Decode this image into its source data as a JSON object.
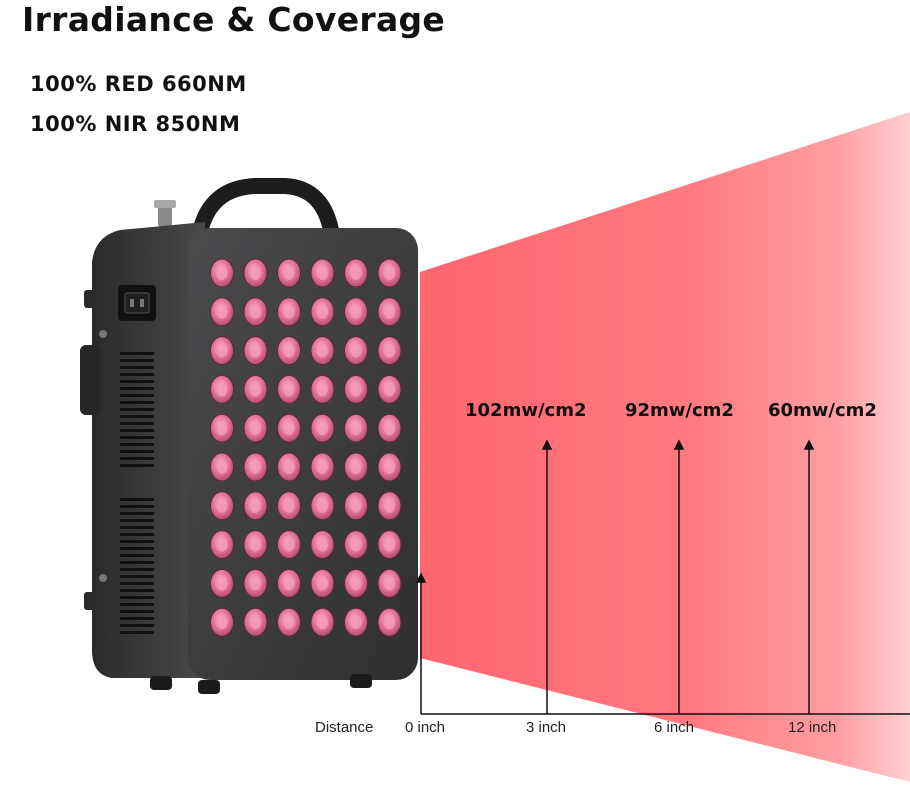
{
  "title": "Irradiance & Coverage",
  "specs": [
    "100% RED 660NM",
    "100% NIR 850NM"
  ],
  "irradiance_labels": [
    "102mw/cm2",
    "92mw/cm2",
    "60mw/cm2"
  ],
  "distance_axis": {
    "label": "Distance",
    "ticks": [
      "0 inch",
      "3 inch",
      "6 inch",
      "12 inch"
    ]
  },
  "colors": {
    "beam_red": "#ff6b73",
    "device_body": "#3a3a3c",
    "led": "#e66a92"
  },
  "device": {
    "led_columns": 6,
    "led_rows": 10
  }
}
